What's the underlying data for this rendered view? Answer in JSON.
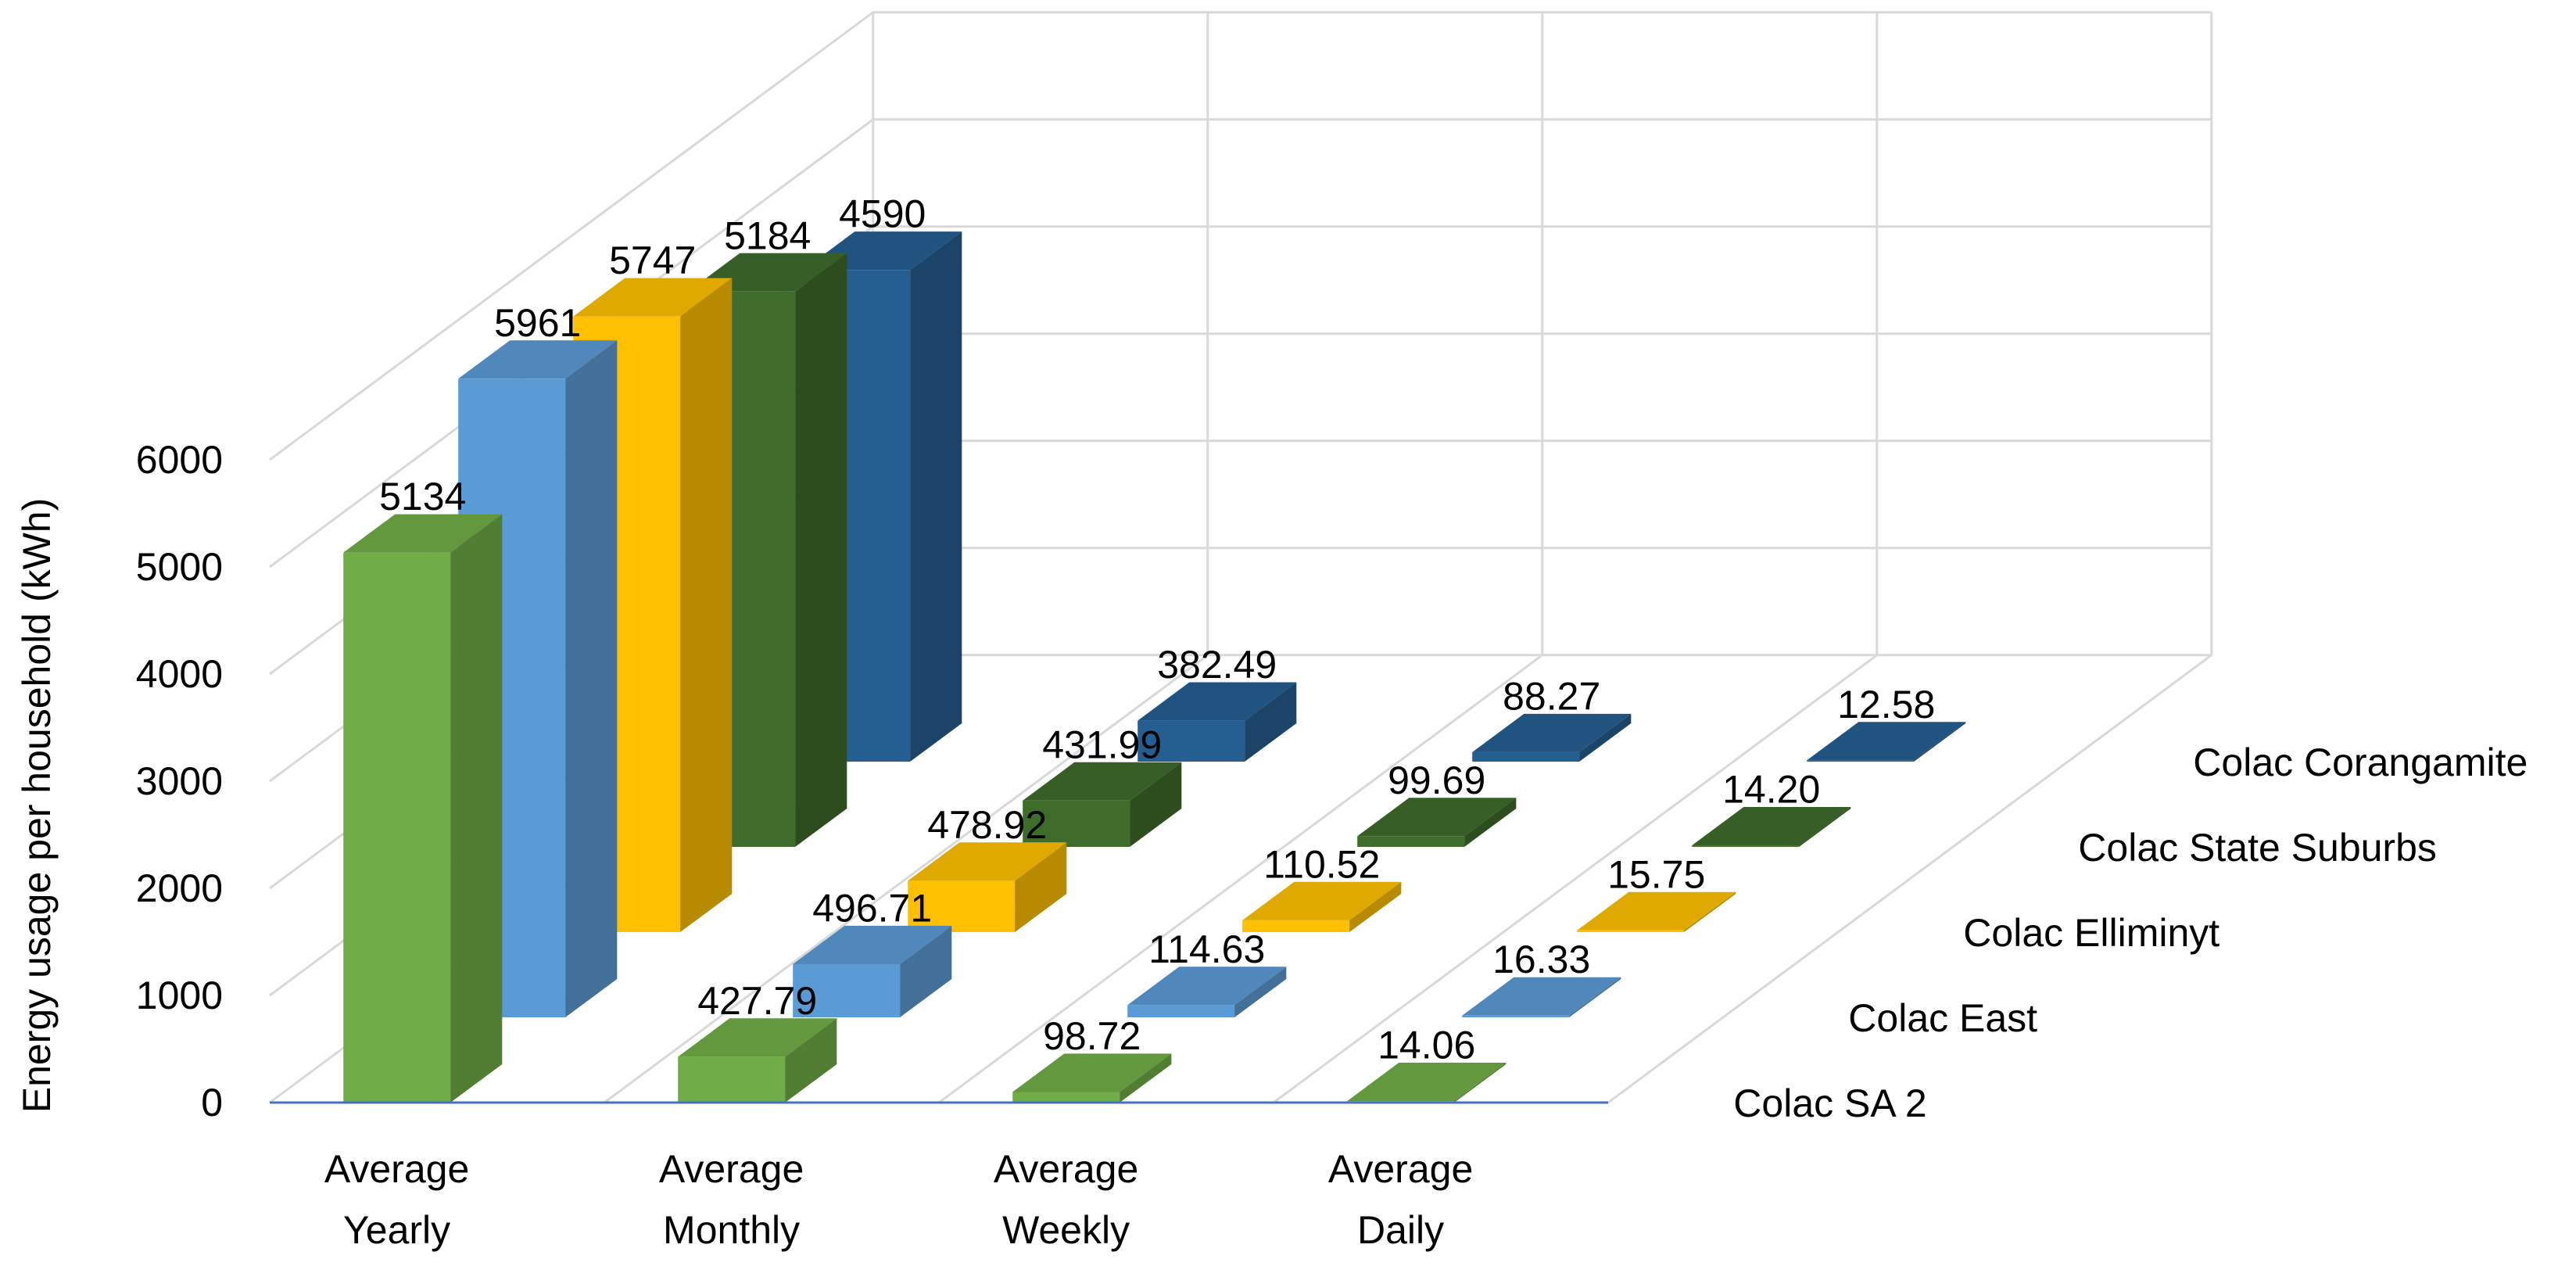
{
  "chart_data": {
    "type": "bar",
    "subtype": "3d-clustered-column",
    "title": "",
    "xlabel": "",
    "ylabel": "Energy usage  per household  (kWh)",
    "ylim": [
      0,
      6000
    ],
    "yticks": [
      "0",
      "1000",
      "2000",
      "3000",
      "4000",
      "5000",
      "6000"
    ],
    "grid": true,
    "categories": [
      [
        "Average",
        "Yearly"
      ],
      [
        "Average",
        "Monthly"
      ],
      [
        "Average",
        "Weekly"
      ],
      [
        "Average",
        "Daily"
      ]
    ],
    "series": [
      {
        "name": "Colac SA 2",
        "color": "#70ad47",
        "values": [
          5134,
          427.79,
          98.72,
          14.06
        ],
        "labels": [
          "5134",
          "427.79",
          "98.72",
          "14.06"
        ]
      },
      {
        "name": "Colac East",
        "color": "#5b9bd5",
        "values": [
          5961,
          496.71,
          114.63,
          16.33
        ],
        "labels": [
          "5961",
          "496.71",
          "114.63",
          "16.33"
        ]
      },
      {
        "name": "Colac Elliminyt",
        "color": "#ffc000",
        "values": [
          5747,
          478.92,
          110.52,
          15.75
        ],
        "labels": [
          "5747",
          "478.92",
          "110.52",
          "15.75"
        ]
      },
      {
        "name": "Colac State Suburbs",
        "color": "#3f6b2b",
        "values": [
          5184,
          431.99,
          99.69,
          14.2
        ],
        "labels": [
          "5184",
          "431.99",
          "99.69",
          "14.20"
        ]
      },
      {
        "name": "Colac Corangamite",
        "color": "#255e91",
        "values": [
          4590,
          382.49,
          88.27,
          12.58
        ],
        "labels": [
          "4590",
          "382.49",
          "88.27",
          "12.58"
        ]
      }
    ]
  }
}
